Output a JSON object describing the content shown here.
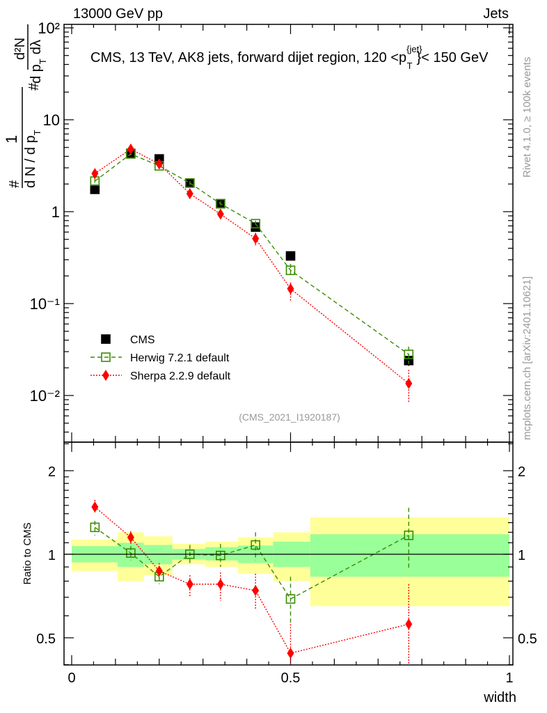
{
  "header": {
    "left": "13000 GeV pp",
    "right": "Jets"
  },
  "side": {
    "rivet": "Rivet 4.1.0, ≥ 100k events",
    "mcplots": "mcplots.cern.ch [arXiv:2401.10621]"
  },
  "colors": {
    "cms": "#000000",
    "herwig": "#3a8c00",
    "sherpa": "#ff0000",
    "band_outer": "#ffff99",
    "band_inner": "#99ff99"
  },
  "chart_data": [
    {
      "type": "scatter",
      "title": "CMS, 13 TeV, AK8 jets, forward dijet region, 120 <p_T^{jet}}< 150 GeV",
      "title_main": "CMS, 13 TeV, AK8 jets, forward dijet region, 120 <p",
      "title_sup": "{jet}",
      "title_sub": "T",
      "title_end": "}< 150 GeV",
      "analysis": "(CMS_2021_I1920187)",
      "ylabel": {
        "hash": "#",
        "num1": "1",
        "den1": "d N / d p",
        "den1_sub": "T",
        "num2": "d²N",
        "den2": "d p",
        "den2_sub": "T",
        "den2_end": "dλ"
      },
      "yscale": "log",
      "ylim": [
        0.003,
        110
      ],
      "yticks": [
        {
          "v": 100,
          "l": "10²"
        },
        {
          "v": 10,
          "l": "10"
        },
        {
          "v": 1,
          "l": "1"
        },
        {
          "v": 0.1,
          "l": "10⁻¹"
        },
        {
          "v": 0.01,
          "l": "10⁻²"
        }
      ],
      "xlim": [
        -0.02,
        1.005
      ],
      "x": [
        0.053,
        0.135,
        0.2,
        0.27,
        0.34,
        0.42,
        0.5,
        0.77
      ],
      "legend_position": "bottom-left",
      "series": [
        {
          "name": "CMS",
          "style": "square",
          "values": [
            1.75,
            4.3,
            3.75,
            2.05,
            1.22,
            0.68,
            0.33,
            0.024
          ],
          "err": [
            [
              1.7,
              1.8
            ],
            [
              4.2,
              4.4
            ],
            [
              3.65,
              3.85
            ],
            [
              2.0,
              2.1
            ],
            [
              1.18,
              1.26
            ],
            [
              0.66,
              0.7
            ],
            [
              0.32,
              0.34
            ],
            [
              0.021,
              0.027
            ]
          ]
        },
        {
          "name": "Herwig 7.2.1 default",
          "style": "open-square-dashed",
          "values": [
            2.15,
            4.25,
            3.15,
            2.05,
            1.22,
            0.74,
            0.23,
            0.028
          ],
          "err": [
            [
              2.0,
              2.3
            ],
            [
              4.1,
              4.4
            ],
            [
              3.0,
              3.3
            ],
            [
              1.95,
              2.15
            ],
            [
              1.15,
              1.3
            ],
            [
              0.69,
              0.8
            ],
            [
              0.19,
              0.27
            ],
            [
              0.022,
              0.034
            ]
          ]
        },
        {
          "name": "Sherpa 2.2.9 default",
          "style": "diamond-dotted",
          "values": [
            2.6,
            4.8,
            3.3,
            1.57,
            0.94,
            0.51,
            0.145,
            0.0135
          ],
          "err": [
            [
              2.45,
              2.75
            ],
            [
              4.6,
              5.0
            ],
            [
              3.1,
              3.5
            ],
            [
              1.45,
              1.7
            ],
            [
              0.84,
              1.04
            ],
            [
              0.43,
              0.59
            ],
            [
              0.105,
              0.17
            ],
            [
              0.0085,
              0.019
            ]
          ]
        }
      ]
    },
    {
      "type": "scatter",
      "ylabel": "Ratio to CMS",
      "xlabel": "width",
      "yscale": "log",
      "ylim": [
        0.4,
        2.53
      ],
      "yticks": [
        {
          "v": 2,
          "l": "2"
        },
        {
          "v": 1,
          "l": "1"
        },
        {
          "v": 0.5,
          "l": "0.5"
        }
      ],
      "xticks": [
        {
          "v": 0,
          "l": "0"
        },
        {
          "v": 0.5,
          "l": "0.5"
        },
        {
          "v": 1,
          "l": "1"
        }
      ],
      "bin_edges": [
        0,
        0.105,
        0.165,
        0.23,
        0.305,
        0.38,
        0.46,
        0.545,
        1.0
      ],
      "band_outer": [
        [
          0.87,
          1.13
        ],
        [
          0.8,
          1.2
        ],
        [
          0.84,
          1.16
        ],
        [
          0.92,
          1.09
        ],
        [
          0.9,
          1.11
        ],
        [
          0.85,
          1.15
        ],
        [
          0.8,
          1.2
        ],
        [
          0.65,
          1.36
        ]
      ],
      "band_inner": [
        [
          0.935,
          1.07
        ],
        [
          0.9,
          1.1
        ],
        [
          0.92,
          1.08
        ],
        [
          0.957,
          1.045
        ],
        [
          0.95,
          1.06
        ],
        [
          0.93,
          1.075
        ],
        [
          0.9,
          1.11
        ],
        [
          0.83,
          1.18
        ]
      ],
      "x": [
        0.053,
        0.135,
        0.2,
        0.27,
        0.34,
        0.42,
        0.5,
        0.77
      ],
      "series": [
        {
          "name": "Herwig 7.2.1 default",
          "values": [
            1.25,
            1.01,
            0.83,
            1.0,
            0.99,
            1.08,
            0.69,
            1.17
          ],
          "err": [
            [
              1.17,
              1.32
            ],
            [
              0.95,
              1.07
            ],
            [
              0.78,
              0.88
            ],
            [
              0.93,
              1.08
            ],
            [
              0.9,
              1.09
            ],
            [
              0.95,
              1.2
            ],
            [
              0.56,
              0.83
            ],
            [
              0.88,
              1.47
            ]
          ]
        },
        {
          "name": "Sherpa 2.2.9 default",
          "values": [
            1.48,
            1.15,
            0.87,
            0.78,
            0.78,
            0.74,
            0.44,
            0.56
          ],
          "err": [
            [
              1.4,
              1.57
            ],
            [
              1.08,
              1.21
            ],
            [
              0.82,
              0.93
            ],
            [
              0.7,
              0.84
            ],
            [
              0.68,
              0.86
            ],
            [
              0.63,
              0.85
            ],
            [
              0.39,
              0.56
            ],
            [
              0.39,
              0.78
            ]
          ]
        }
      ]
    }
  ]
}
